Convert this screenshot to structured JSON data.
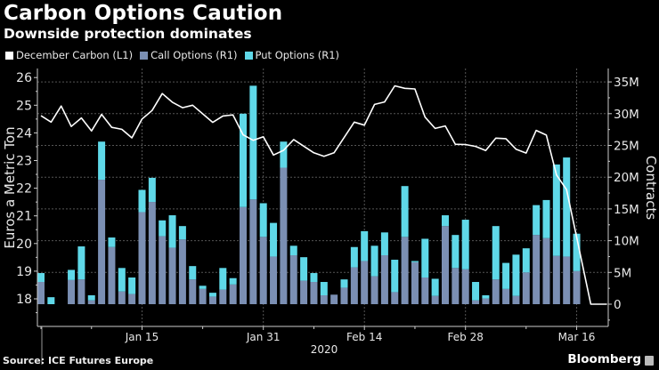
{
  "header": {
    "title": "Carbon Options Caution",
    "subtitle": "Downside protection dominates"
  },
  "legend": [
    {
      "label": "December Carbon (L1)",
      "color": "#ffffff"
    },
    {
      "label": "Call Options (R1)",
      "color": "#7b8fb3"
    },
    {
      "label": "Put Options (R1)",
      "color": "#5fd8e8"
    }
  ],
  "footer": {
    "source": "Source: ICE Futures Europe",
    "brand": "Bloomberg"
  },
  "chart_data": {
    "type": "bar",
    "title": "Carbon Options Caution",
    "subtitle": "Downside protection dominates",
    "xlabel": "2020",
    "ylabel_left": "Euros a Metric Ton",
    "ylabel_right": "Contracts",
    "ylim_left": [
      17.2,
      26.4
    ],
    "yticks_left": [
      18,
      19,
      20,
      21,
      22,
      23,
      24,
      25,
      26
    ],
    "ylim_right": [
      -3.5,
      37
    ],
    "yticks_right": [
      0,
      5,
      10,
      15,
      20,
      25,
      30,
      35
    ],
    "ytick_labels_right": [
      "0",
      "5M",
      "10M",
      "15M",
      "20M",
      "25M",
      "30M",
      "35M"
    ],
    "xticks": [
      {
        "slot": 10,
        "label": "Jan 15"
      },
      {
        "slot": 22,
        "label": "Jan 31"
      },
      {
        "slot": 32,
        "label": "Feb 14"
      },
      {
        "slot": 42,
        "label": "Feb 28"
      },
      {
        "slot": 53,
        "label": "Mar 16"
      }
    ],
    "minor_xticks": [
      0,
      5,
      16,
      27,
      37,
      48
    ],
    "grid": true,
    "legend_position": "top-left",
    "series": [
      {
        "name": "Call Options (R1)",
        "type": "stacked-bar",
        "axis": "right",
        "unit": "M contracts",
        "values": [
          3.5,
          0.0,
          null,
          3.8,
          3.9,
          0.6,
          19.6,
          9.0,
          2.0,
          1.6,
          14.5,
          16.1,
          10.7,
          8.9,
          10.2,
          3.9,
          2.4,
          1.2,
          2.3,
          3.1,
          15.3,
          16.5,
          10.6,
          7.5,
          21.5,
          7.7,
          3.7,
          3.5,
          1.4,
          1.5,
          2.6,
          5.8,
          6.8,
          4.4,
          7.7,
          1.9,
          10.6,
          6.6,
          4.2,
          1.3,
          12.3,
          5.7,
          5.5,
          0.6,
          0.9,
          3.9,
          2.4,
          1.3,
          5.0,
          10.9,
          10.4,
          7.6,
          7.5,
          5.2
        ]
      },
      {
        "name": "Put Options (R1)",
        "type": "stacked-bar",
        "axis": "right",
        "unit": "M contracts",
        "values": [
          1.4,
          1.1,
          null,
          1.6,
          5.2,
          0.8,
          6.0,
          1.5,
          3.7,
          2.6,
          3.5,
          3.8,
          2.5,
          5.1,
          2.1,
          2.1,
          0.5,
          0.6,
          3.4,
          1.0,
          14.7,
          17.9,
          5.3,
          5.3,
          4.1,
          1.5,
          3.7,
          1.4,
          2.1,
          0.0,
          1.3,
          3.2,
          4.7,
          4.8,
          3.6,
          5.1,
          8.0,
          0.2,
          6.1,
          2.7,
          1.7,
          5.2,
          7.8,
          2.9,
          0.5,
          8.4,
          4.1,
          6.5,
          3.8,
          4.7,
          6.0,
          14.4,
          15.6,
          5.9
        ]
      },
      {
        "name": "December Carbon (L1)",
        "type": "line",
        "axis": "left",
        "unit": "EUR/t",
        "points": [
          [
            0,
            24.62
          ],
          [
            1,
            24.39
          ],
          [
            2,
            24.97
          ],
          [
            3,
            24.23
          ],
          [
            4,
            24.54
          ],
          [
            5,
            24.07
          ],
          [
            6,
            24.67
          ],
          [
            7,
            24.2
          ],
          [
            8,
            24.13
          ],
          [
            9,
            23.82
          ],
          [
            10,
            24.5
          ],
          [
            11,
            24.81
          ],
          [
            12,
            25.42
          ],
          [
            13,
            25.11
          ],
          [
            14,
            24.91
          ],
          [
            15,
            25.0
          ],
          [
            17,
            24.38
          ],
          [
            18,
            24.61
          ],
          [
            19,
            24.65
          ],
          [
            20,
            23.93
          ],
          [
            21,
            23.73
          ],
          [
            22,
            23.86
          ],
          [
            23,
            23.2
          ],
          [
            24,
            23.37
          ],
          [
            25,
            23.76
          ],
          [
            27,
            23.28
          ],
          [
            28,
            23.15
          ],
          [
            29,
            23.28
          ],
          [
            31,
            24.39
          ],
          [
            32,
            24.28
          ],
          [
            33,
            25.03
          ],
          [
            34,
            25.12
          ],
          [
            35,
            25.7
          ],
          [
            36,
            25.61
          ],
          [
            37,
            25.59
          ],
          [
            38,
            24.57
          ],
          [
            39,
            24.16
          ],
          [
            40,
            24.25
          ],
          [
            41,
            23.59
          ],
          [
            42,
            23.58
          ],
          [
            43,
            23.51
          ],
          [
            44,
            23.36
          ],
          [
            45,
            23.81
          ],
          [
            46,
            23.79
          ],
          [
            47,
            23.41
          ],
          [
            48,
            23.27
          ],
          [
            49,
            24.09
          ],
          [
            50,
            23.92
          ],
          [
            51,
            22.48
          ],
          [
            52,
            21.95
          ],
          [
            53,
            20.23
          ],
          [
            54.4,
            17.8
          ],
          [
            56,
            17.8
          ]
        ]
      }
    ]
  }
}
